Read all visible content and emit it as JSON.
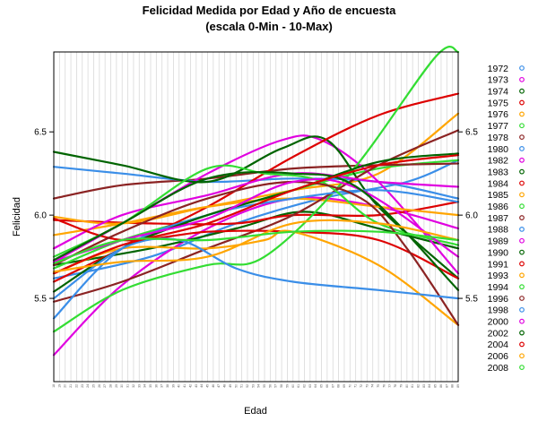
{
  "chart_data": {
    "type": "line",
    "title": "Felicidad Medida por Edad y Año de encuesta",
    "subtitle": "(escala 0-Min - 10-Max)",
    "xlabel": "Edad",
    "ylabel": "Felicidad",
    "x": [
      18,
      19,
      20,
      21,
      22,
      23,
      24,
      25,
      26,
      27,
      28,
      29,
      30,
      31,
      32,
      33,
      34,
      35,
      36,
      37,
      38,
      39,
      40,
      41,
      42,
      43,
      44,
      45,
      46,
      47,
      48,
      49,
      50,
      51,
      52,
      53,
      54,
      55,
      56,
      57,
      58,
      59,
      60,
      61,
      62,
      63,
      64,
      65,
      66,
      67,
      68,
      69,
      70,
      71,
      72,
      73,
      74,
      75,
      76,
      77,
      78,
      79,
      80,
      81,
      82,
      83,
      84,
      85,
      86,
      87,
      88,
      89
    ],
    "xlim": [
      18,
      89
    ],
    "ylim": [
      5.0,
      6.98
    ],
    "left_ticks": [
      "5.5",
      "6.0",
      "6.5"
    ],
    "right_ticks": [
      "5.5",
      "6.0",
      "6.5"
    ],
    "ytick_values": [
      5.5,
      6.0,
      6.5
    ],
    "grid": "vertical",
    "legend_position": "right",
    "series": [
      {
        "name": "1972",
        "color": "#3a8ee8",
        "knots": [
          [
            18,
            5.62
          ],
          [
            35,
            5.75
          ],
          [
            50,
            5.95
          ],
          [
            65,
            6.1
          ],
          [
            80,
            6.2
          ],
          [
            89,
            6.33
          ]
        ]
      },
      {
        "name": "1973",
        "color": "#e000e0",
        "knots": [
          [
            18,
            5.16
          ],
          [
            30,
            5.58
          ],
          [
            45,
            5.92
          ],
          [
            60,
            6.1
          ],
          [
            75,
            6.05
          ],
          [
            89,
            5.92
          ]
        ]
      },
      {
        "name": "1974",
        "color": "#006400",
        "knots": [
          [
            18,
            5.7
          ],
          [
            35,
            5.8
          ],
          [
            50,
            5.92
          ],
          [
            62,
            6.02
          ],
          [
            75,
            5.92
          ],
          [
            89,
            5.8
          ]
        ]
      },
      {
        "name": "1975",
        "color": "#dd0000",
        "knots": [
          [
            18,
            5.97
          ],
          [
            35,
            5.95
          ],
          [
            50,
            5.95
          ],
          [
            60,
            6.0
          ],
          [
            75,
            6.0
          ],
          [
            89,
            6.08
          ]
        ]
      },
      {
        "name": "1976",
        "color": "#ffa500",
        "knots": [
          [
            18,
            5.99
          ],
          [
            30,
            5.95
          ],
          [
            45,
            6.05
          ],
          [
            60,
            6.15
          ],
          [
            75,
            6.25
          ],
          [
            89,
            6.61
          ]
        ]
      },
      {
        "name": "1977",
        "color": "#33dd33",
        "knots": [
          [
            18,
            5.68
          ],
          [
            30,
            5.85
          ],
          [
            45,
            6.0
          ],
          [
            60,
            6.15
          ],
          [
            75,
            6.28
          ],
          [
            89,
            6.33
          ]
        ]
      },
      {
        "name": "1978",
        "color": "#8b2323",
        "knots": [
          [
            18,
            6.1
          ],
          [
            30,
            6.18
          ],
          [
            45,
            6.22
          ],
          [
            60,
            6.28
          ],
          [
            75,
            6.3
          ],
          [
            89,
            6.31
          ]
        ]
      },
      {
        "name": "1980",
        "color": "#3a8ee8",
        "knots": [
          [
            18,
            6.29
          ],
          [
            30,
            6.25
          ],
          [
            45,
            6.2
          ],
          [
            60,
            6.22
          ],
          [
            75,
            6.2
          ],
          [
            89,
            6.1
          ]
        ]
      },
      {
        "name": "1982",
        "color": "#e000e0",
        "knots": [
          [
            18,
            5.72
          ],
          [
            30,
            5.95
          ],
          [
            45,
            6.25
          ],
          [
            58,
            6.45
          ],
          [
            65,
            6.45
          ],
          [
            75,
            6.2
          ],
          [
            89,
            5.65
          ]
        ]
      },
      {
        "name": "1983",
        "color": "#006400",
        "knots": [
          [
            18,
            6.38
          ],
          [
            30,
            6.3
          ],
          [
            45,
            6.2
          ],
          [
            58,
            6.4
          ],
          [
            66,
            6.45
          ],
          [
            75,
            6.05
          ],
          [
            89,
            5.62
          ]
        ]
      },
      {
        "name": "1984",
        "color": "#dd0000",
        "knots": [
          [
            18,
            5.6
          ],
          [
            30,
            5.8
          ],
          [
            45,
            6.05
          ],
          [
            60,
            6.35
          ],
          [
            75,
            6.6
          ],
          [
            89,
            6.73
          ]
        ]
      },
      {
        "name": "1985",
        "color": "#ffa500",
        "knots": [
          [
            18,
            5.88
          ],
          [
            30,
            5.95
          ],
          [
            45,
            6.05
          ],
          [
            60,
            6.1
          ],
          [
            75,
            6.05
          ],
          [
            89,
            6.0
          ]
        ]
      },
      {
        "name": "1986",
        "color": "#33dd33",
        "knots": [
          [
            18,
            5.3
          ],
          [
            30,
            5.55
          ],
          [
            45,
            5.7
          ],
          [
            55,
            5.75
          ],
          [
            70,
            6.25
          ],
          [
            85,
            6.95
          ],
          [
            89,
            6.98
          ]
        ]
      },
      {
        "name": "1987",
        "color": "#8b2323",
        "knots": [
          [
            18,
            5.48
          ],
          [
            30,
            5.6
          ],
          [
            45,
            5.8
          ],
          [
            60,
            6.0
          ],
          [
            75,
            6.3
          ],
          [
            89,
            6.51
          ]
        ]
      },
      {
        "name": "1988",
        "color": "#3a8ee8",
        "knots": [
          [
            18,
            5.38
          ],
          [
            30,
            5.8
          ],
          [
            45,
            6.0
          ],
          [
            60,
            6.1
          ],
          [
            75,
            6.15
          ],
          [
            89,
            6.08
          ]
        ]
      },
      {
        "name": "1989",
        "color": "#e000e0",
        "knots": [
          [
            18,
            5.8
          ],
          [
            30,
            6.0
          ],
          [
            45,
            6.12
          ],
          [
            60,
            6.25
          ],
          [
            75,
            6.2
          ],
          [
            89,
            6.17
          ]
        ]
      },
      {
        "name": "1990",
        "color": "#006400",
        "knots": [
          [
            18,
            5.54
          ],
          [
            30,
            5.8
          ],
          [
            45,
            6.0
          ],
          [
            60,
            6.15
          ],
          [
            75,
            6.32
          ],
          [
            89,
            6.37
          ]
        ]
      },
      {
        "name": "1991",
        "color": "#dd0000",
        "knots": [
          [
            18,
            5.98
          ],
          [
            30,
            5.85
          ],
          [
            45,
            5.9
          ],
          [
            60,
            5.9
          ],
          [
            75,
            5.85
          ],
          [
            89,
            5.62
          ]
        ]
      },
      {
        "name": "1993",
        "color": "#ffa500",
        "knots": [
          [
            18,
            5.65
          ],
          [
            30,
            5.8
          ],
          [
            45,
            5.8
          ],
          [
            55,
            5.85
          ],
          [
            60,
            5.9
          ],
          [
            75,
            5.7
          ],
          [
            89,
            5.34
          ]
        ]
      },
      {
        "name": "1994",
        "color": "#33dd33",
        "knots": [
          [
            18,
            5.75
          ],
          [
            30,
            5.95
          ],
          [
            45,
            6.28
          ],
          [
            55,
            6.25
          ],
          [
            65,
            6.2
          ],
          [
            75,
            5.95
          ],
          [
            89,
            5.82
          ]
        ]
      },
      {
        "name": "1996",
        "color": "#8b2323",
        "knots": [
          [
            18,
            5.7
          ],
          [
            30,
            5.9
          ],
          [
            45,
            6.1
          ],
          [
            60,
            6.2
          ],
          [
            72,
            6.1
          ],
          [
            80,
            5.8
          ],
          [
            89,
            5.34
          ]
        ]
      },
      {
        "name": "1998",
        "color": "#3a8ee8",
        "knots": [
          [
            18,
            5.5
          ],
          [
            30,
            5.8
          ],
          [
            40,
            5.85
          ],
          [
            50,
            5.68
          ],
          [
            60,
            5.6
          ],
          [
            75,
            5.55
          ],
          [
            89,
            5.5
          ]
        ]
      },
      {
        "name": "2000",
        "color": "#e000e0",
        "knots": [
          [
            18,
            5.72
          ],
          [
            30,
            5.85
          ],
          [
            45,
            5.98
          ],
          [
            60,
            6.2
          ],
          [
            72,
            6.15
          ],
          [
            89,
            5.75
          ]
        ]
      },
      {
        "name": "2002",
        "color": "#006400",
        "knots": [
          [
            18,
            5.73
          ],
          [
            30,
            5.95
          ],
          [
            45,
            6.22
          ],
          [
            60,
            6.25
          ],
          [
            72,
            6.15
          ],
          [
            89,
            5.55
          ]
        ]
      },
      {
        "name": "2004",
        "color": "#dd0000",
        "knots": [
          [
            18,
            5.65
          ],
          [
            30,
            5.82
          ],
          [
            45,
            5.95
          ],
          [
            60,
            6.15
          ],
          [
            75,
            6.3
          ],
          [
            89,
            6.36
          ]
        ]
      },
      {
        "name": "2006",
        "color": "#ffa500",
        "knots": [
          [
            18,
            5.66
          ],
          [
            30,
            5.72
          ],
          [
            45,
            5.75
          ],
          [
            60,
            5.95
          ],
          [
            75,
            5.95
          ],
          [
            89,
            5.85
          ]
        ]
      },
      {
        "name": "2008",
        "color": "#33dd33",
        "knots": [
          [
            18,
            5.71
          ],
          [
            30,
            5.85
          ],
          [
            45,
            5.85
          ],
          [
            60,
            5.9
          ],
          [
            75,
            5.9
          ],
          [
            89,
            5.85
          ]
        ]
      }
    ]
  }
}
